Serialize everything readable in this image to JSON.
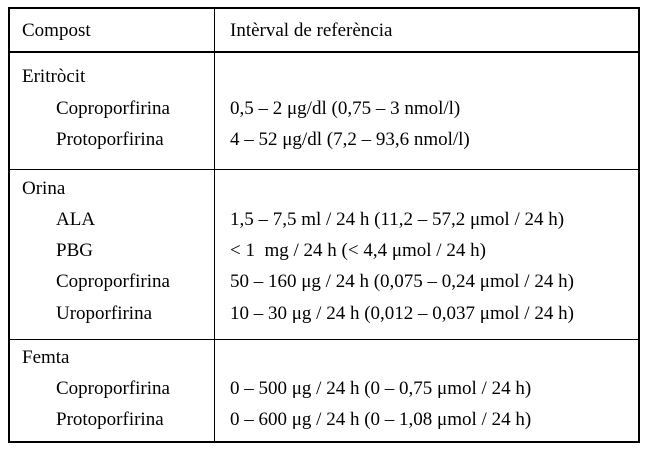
{
  "header": {
    "col1": "Compost",
    "col2": "Intèrval de referència"
  },
  "sections": [
    {
      "title": "Eritròcit",
      "rows": [
        {
          "name": "Coproporfirina",
          "value": "0,5 – 2 μg/dl (0,75 – 3 nmol/l)"
        },
        {
          "name": "Protoporfirina",
          "value": "4 – 52 μg/dl (7,2 – 93,6 nmol/l)"
        }
      ]
    },
    {
      "title": "Orina",
      "rows": [
        {
          "name": "ALA",
          "value": "1,5 – 7,5 ml / 24 h (11,2 – 57,2 μmol / 24 h)"
        },
        {
          "name": "PBG",
          "value": "< 1  mg / 24 h (< 4,4 μmol / 24 h)"
        },
        {
          "name": "Coproporfirina",
          "value": "50 – 160 μg / 24 h (0,075 – 0,24 μmol / 24 h)"
        },
        {
          "name": "Uroporfirina",
          "value": "10 – 30 μg / 24 h (0,012 – 0,037 μmol / 24 h)"
        }
      ]
    },
    {
      "title": "Femta",
      "rows": [
        {
          "name": "Coproporfirina",
          "value": "0 – 500 μg / 24 h (0 – 0,75 μmol / 24 h)"
        },
        {
          "name": "Protoporfirina",
          "value": "0 – 600 μg / 24 h (0 – 1,08 μmol / 24 h)"
        }
      ]
    }
  ]
}
